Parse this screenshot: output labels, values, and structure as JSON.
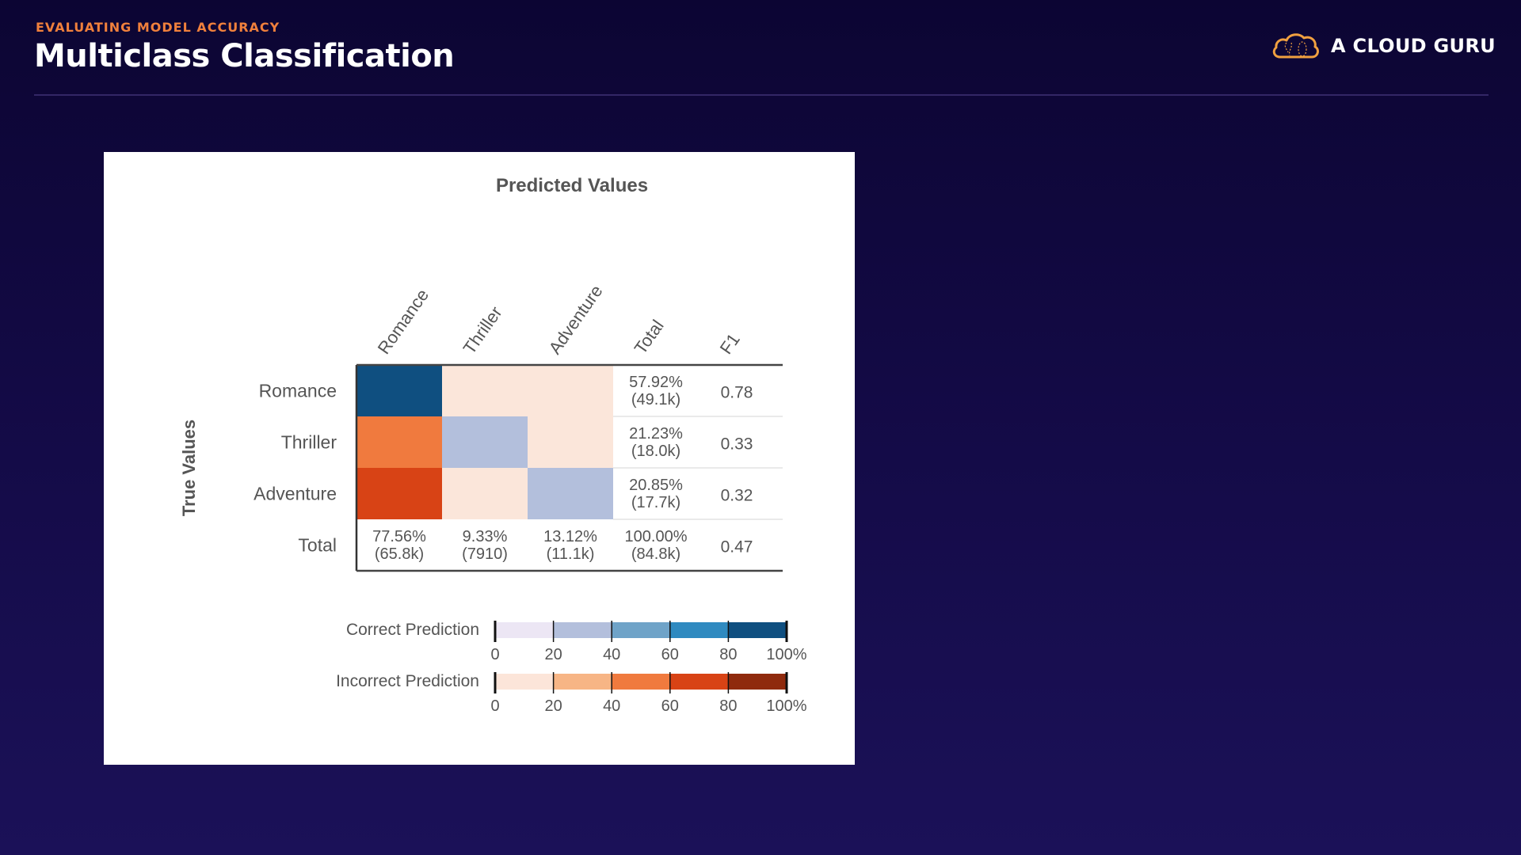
{
  "header": {
    "eyebrow": "EVALUATING MODEL ACCURACY",
    "title": "Multiclass Classification",
    "brand": "A CLOUD GURU",
    "brand_icon": "cloud-logo-icon",
    "colors": {
      "accent": "#f0803c",
      "background": "#130a45"
    }
  },
  "chart_data": {
    "type": "heatmap",
    "title": "Predicted Values",
    "xlabel": "Predicted Values",
    "ylabel": "True Values",
    "column_labels": [
      "Romance",
      "Thriller",
      "Adventure",
      "Total",
      "F1"
    ],
    "row_labels": [
      "Romance",
      "Thriller",
      "Adventure",
      "Total"
    ],
    "classes": [
      "Romance",
      "Thriller",
      "Adventure"
    ],
    "cell_colors": [
      [
        "#0f4f80",
        "#fbe6da",
        "#fbe6da"
      ],
      [
        "#f07a3e",
        "#b3bfdc",
        "#fbe6da"
      ],
      [
        "#d84315",
        "#fbe6da",
        "#b3bfdc"
      ]
    ],
    "row_totals": [
      {
        "pct": "57.92%",
        "count": "(49.1k)"
      },
      {
        "pct": "21.23%",
        "count": "(18.0k)"
      },
      {
        "pct": "20.85%",
        "count": "(17.7k)"
      }
    ],
    "column_totals": [
      {
        "pct": "77.56%",
        "count": "(65.8k)"
      },
      {
        "pct": "9.33%",
        "count": "(7910)"
      },
      {
        "pct": "13.12%",
        "count": "(11.1k)"
      },
      {
        "pct": "100.00%",
        "count": "(84.8k)"
      }
    ],
    "f1": [
      "0.78",
      "0.33",
      "0.32",
      "0.47"
    ],
    "legends": [
      {
        "label": "Correct Prediction",
        "colors": [
          "#ece6f4",
          "#b3bfdc",
          "#6fa3c8",
          "#2f8ac0",
          "#0f4f80"
        ],
        "ticks": [
          "0",
          "20",
          "40",
          "60",
          "80",
          "100%"
        ]
      },
      {
        "label": "Incorrect Prediction",
        "colors": [
          "#fce5d9",
          "#f7b585",
          "#f07a3e",
          "#d84315",
          "#8f2a0d"
        ],
        "ticks": [
          "0",
          "20",
          "40",
          "60",
          "80",
          "100%"
        ]
      }
    ]
  }
}
